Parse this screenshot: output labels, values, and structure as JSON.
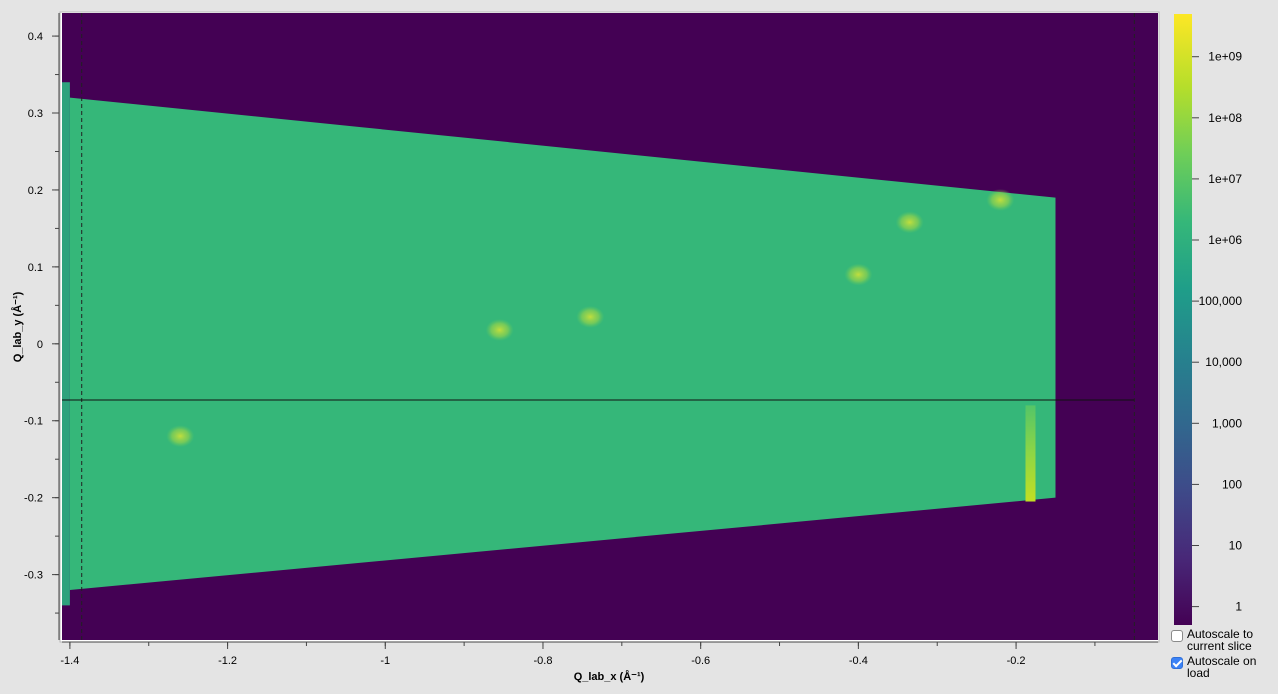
{
  "chart_data": {
    "type": "heatmap",
    "xlabel": "Q_lab_x (Å⁻¹)",
    "ylabel": "Q_lab_y (Å⁻¹)",
    "xlim": [
      -1.41,
      -0.02
    ],
    "ylim": [
      -0.385,
      0.43
    ],
    "x_ticks": [
      -1.4,
      -1.2,
      -1,
      -0.8,
      -0.6,
      -0.4,
      -0.2
    ],
    "x_tick_labels": [
      "-1.4",
      "-1.2",
      "-1",
      "-0.8",
      "-0.6",
      "-0.4",
      "-0.2"
    ],
    "y_ticks": [
      0.4,
      0.3,
      0.2,
      0.1,
      0,
      -0.1,
      -0.2,
      -0.3
    ],
    "y_tick_labels": [
      "0.4",
      "0.3",
      "0.2",
      "0.1",
      "0",
      "-0.1",
      "-0.2",
      "-0.3"
    ],
    "colorbar": {
      "scale": "log",
      "colormap": "viridis",
      "range": [
        0.5,
        5000000000
      ],
      "ticks": [
        1,
        10,
        100,
        1000,
        10000,
        100000,
        1000000,
        10000000,
        100000000,
        1000000000
      ],
      "tick_labels": [
        "1",
        "10",
        "100",
        "1,000",
        "10,000",
        "100,000",
        "1e+06",
        "1e+07",
        "1e+08",
        "1e+09"
      ]
    },
    "background_value": 1,
    "detector_region": {
      "value": 3000000,
      "left": {
        "x": -1.4,
        "y_top": 0.32,
        "y_bottom": -0.32
      },
      "right": {
        "x": -0.15,
        "y_top": 0.19,
        "y_bottom": -0.2
      }
    },
    "hot_spots": [
      {
        "x": -1.26,
        "y": -0.12,
        "value": 50000000
      },
      {
        "x": -0.74,
        "y": 0.035,
        "value": 50000000
      },
      {
        "x": -0.855,
        "y": 0.018,
        "value": 20000000
      },
      {
        "x": -0.335,
        "y": 0.158,
        "value": 30000000
      },
      {
        "x": -0.22,
        "y": 0.187,
        "value": 100000000
      },
      {
        "x": -0.4,
        "y": 0.09,
        "value": 10000000
      }
    ],
    "horizontal_line_y": -0.073,
    "vertical_dashed_lines_x": [
      -1.385,
      -0.05
    ],
    "grid": false
  },
  "controls": {
    "autoscale_slice": {
      "label": "Autoscale to current slice",
      "checked": false
    },
    "autoscale_load": {
      "label": "Autoscale on load",
      "checked": true
    }
  },
  "colors": {
    "background": "#440154",
    "detector": "#35b779",
    "accent": "#3b82f6"
  }
}
